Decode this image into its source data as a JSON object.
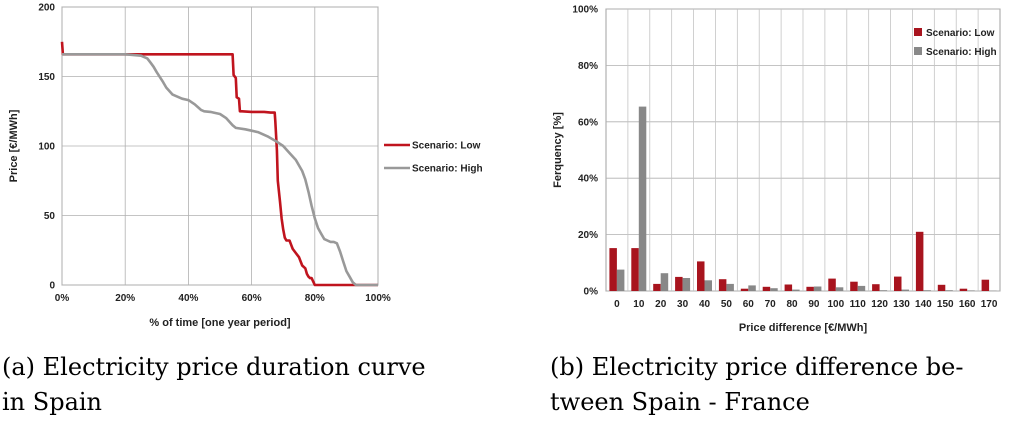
{
  "captions": {
    "a": [
      "(a) Electricity price duration curve",
      "in Spain"
    ],
    "b": [
      "(b) Electricity price difference be-",
      "tween Spain - France"
    ]
  },
  "chart_data": [
    {
      "type": "line",
      "title": "",
      "xlabel": "% of time [one year period]",
      "ylabel": "Price [€/MWh]",
      "xlim": [
        0,
        100
      ],
      "ylim": [
        0,
        200
      ],
      "xticks": [
        0,
        20,
        40,
        60,
        80,
        100
      ],
      "xtick_labels": [
        "0%",
        "20%",
        "40%",
        "60%",
        "80%",
        "100%"
      ],
      "yticks": [
        0,
        50,
        100,
        150,
        200
      ],
      "ytick_labels": [
        "0",
        "50",
        "100",
        "150",
        "200"
      ],
      "grid": true,
      "legend_position": "right",
      "series": [
        {
          "name": "Scenario: Low",
          "color": "#c0141e",
          "x": [
            0,
            0.3,
            10,
            20,
            30,
            40,
            50,
            54,
            54.3,
            55,
            55.3,
            56,
            56.3,
            57,
            60,
            64,
            66,
            67.3,
            67.5,
            68,
            68.3,
            69,
            69.5,
            70,
            70.5,
            71,
            72,
            72.5,
            73,
            74,
            75,
            75.5,
            76,
            77,
            77.5,
            78,
            78.5,
            79,
            80,
            100
          ],
          "y": [
            175,
            166,
            166,
            166,
            166,
            166,
            166,
            166,
            151,
            149,
            135,
            134,
            125,
            125,
            124.5,
            124.5,
            124,
            124,
            118,
            97,
            75,
            60,
            48,
            40,
            34,
            32,
            32,
            29,
            26,
            23,
            20,
            17,
            14,
            12,
            8,
            6,
            5,
            5,
            0,
            0
          ]
        },
        {
          "name": "Scenario: High",
          "color": "#999999",
          "x": [
            0,
            10,
            20,
            25,
            27,
            28,
            29,
            30,
            32,
            33,
            35,
            37,
            38,
            40,
            42,
            44,
            45,
            47,
            48,
            50,
            52,
            54,
            55,
            58,
            60,
            62,
            65,
            68,
            70,
            72,
            74,
            76,
            77,
            78,
            79,
            80,
            81,
            82,
            83,
            84,
            85,
            86,
            87,
            88,
            89,
            90,
            91,
            92,
            93,
            100
          ],
          "y": [
            166,
            166,
            166,
            165,
            163,
            160,
            157,
            153,
            146,
            142,
            137,
            135,
            134,
            133,
            130,
            126,
            125,
            124.5,
            124,
            123,
            120,
            115,
            113,
            112,
            111,
            110,
            107,
            103,
            100,
            95,
            90,
            82,
            76,
            67,
            57,
            48,
            41,
            37,
            33,
            32,
            31,
            31,
            30,
            24,
            17,
            10,
            6,
            2,
            0,
            0
          ]
        }
      ]
    },
    {
      "type": "bar",
      "title": "",
      "xlabel": "Price difference [€/MWh]",
      "ylabel": "Ferquency [%]",
      "ylim": [
        0,
        100
      ],
      "yticks": [
        0,
        20,
        40,
        60,
        80,
        100
      ],
      "ytick_labels": [
        "0%",
        "20%",
        "40%",
        "60%",
        "80%",
        "100%"
      ],
      "grid": true,
      "legend_position": "top-right",
      "categories": [
        "0",
        "10",
        "20",
        "30",
        "40",
        "50",
        "60",
        "70",
        "80",
        "90",
        "100",
        "110",
        "120",
        "130",
        "140",
        "150",
        "160",
        "170"
      ],
      "series": [
        {
          "name": "Scenario: Low",
          "color": "#a8141e",
          "values": [
            15.2,
            15.2,
            2.5,
            5,
            10.5,
            4.2,
            0.8,
            1.5,
            2.3,
            1.5,
            4.4,
            3.3,
            2.4,
            5.1,
            21,
            2.2,
            0.8,
            4
          ]
        },
        {
          "name": "Scenario: High",
          "color": "#888888",
          "values": [
            7.6,
            65.4,
            6.3,
            4.6,
            3.8,
            2.5,
            2,
            1,
            0.5,
            1.6,
            1.3,
            1.8,
            0.3,
            0.5,
            0.3,
            0.3,
            0.2,
            0.1
          ]
        }
      ]
    }
  ]
}
